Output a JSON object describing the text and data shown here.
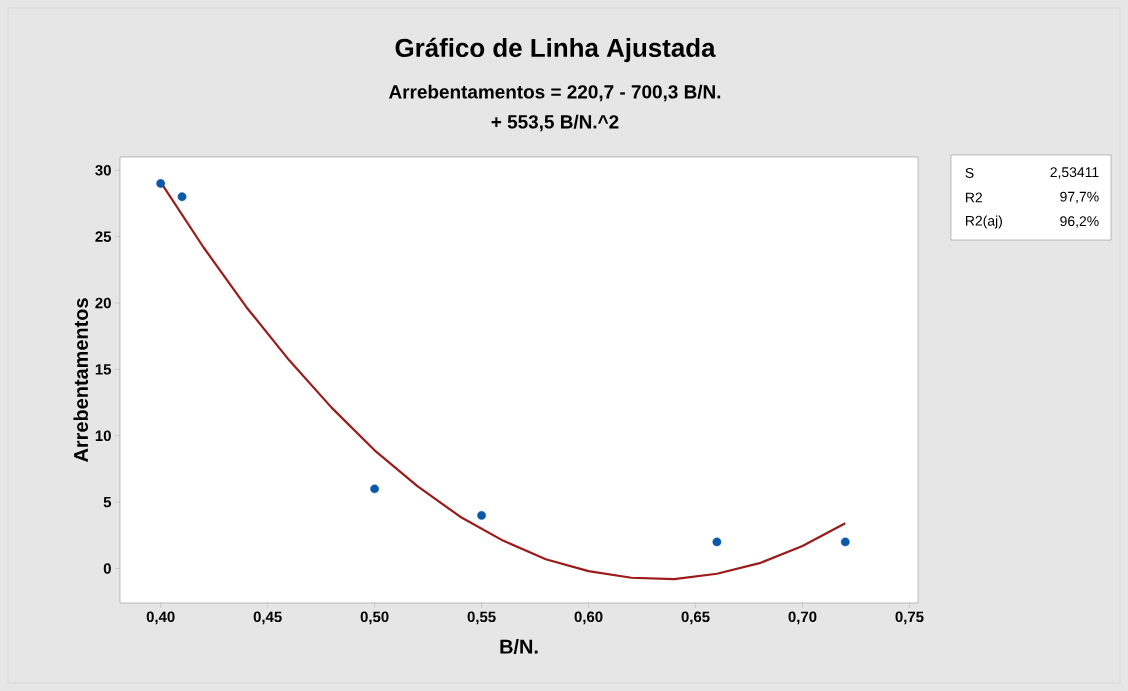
{
  "chart_data": {
    "type": "scatter",
    "title": "Gráfico de Linha Ajustada",
    "subtitle": "Arrebentamentos = 220,7 - 700,3 B/N.",
    "xlabel": "B/N.",
    "ylabel": "Arrebentamentos",
    "annotations": [
      "+ 553,5 B/N.^2",
      "S",
      "2,53411",
      "R2",
      "97,7%",
      "R2(aj)",
      "96,2%"
    ],
    "xlim": [
      0.381,
      0.754
    ],
    "ylim": [
      -2.6,
      31
    ],
    "xticks": [
      {
        "value": 0.4,
        "label": "0,40"
      },
      {
        "value": 0.45,
        "label": "0,45"
      },
      {
        "value": 0.5,
        "label": "0,50"
      },
      {
        "value": 0.55,
        "label": "0,55"
      },
      {
        "value": 0.6,
        "label": "0,60"
      },
      {
        "value": 0.65,
        "label": "0,65"
      },
      {
        "value": 0.7,
        "label": "0,70"
      },
      {
        "value": 0.75,
        "label": "0,75"
      }
    ],
    "yticks": [
      0,
      5,
      10,
      15,
      20,
      25,
      30
    ],
    "series": [
      {
        "color": "#0b5aa8",
        "marker": "circle",
        "x": [
          0.4,
          0.41,
          0.5,
          0.55,
          0.66,
          0.72
        ],
        "values": [
          29,
          28,
          6,
          4,
          2,
          2
        ]
      },
      {
        "type": "line",
        "color": "#9c1a1a",
        "marker": "none",
        "line_style": "solid",
        "x": [
          0.4,
          0.42,
          0.44,
          0.46,
          0.48,
          0.5,
          0.52,
          0.54,
          0.56,
          0.58,
          0.6,
          0.62,
          0.64,
          0.66,
          0.68,
          0.7,
          0.72
        ],
        "values": [
          29.1,
          24.2,
          19.7,
          15.7,
          12.1,
          8.9,
          6.2,
          3.9,
          2.1,
          0.7,
          -0.2,
          -0.7,
          -0.8,
          -0.4,
          0.4,
          1.7,
          3.4
        ]
      }
    ]
  }
}
